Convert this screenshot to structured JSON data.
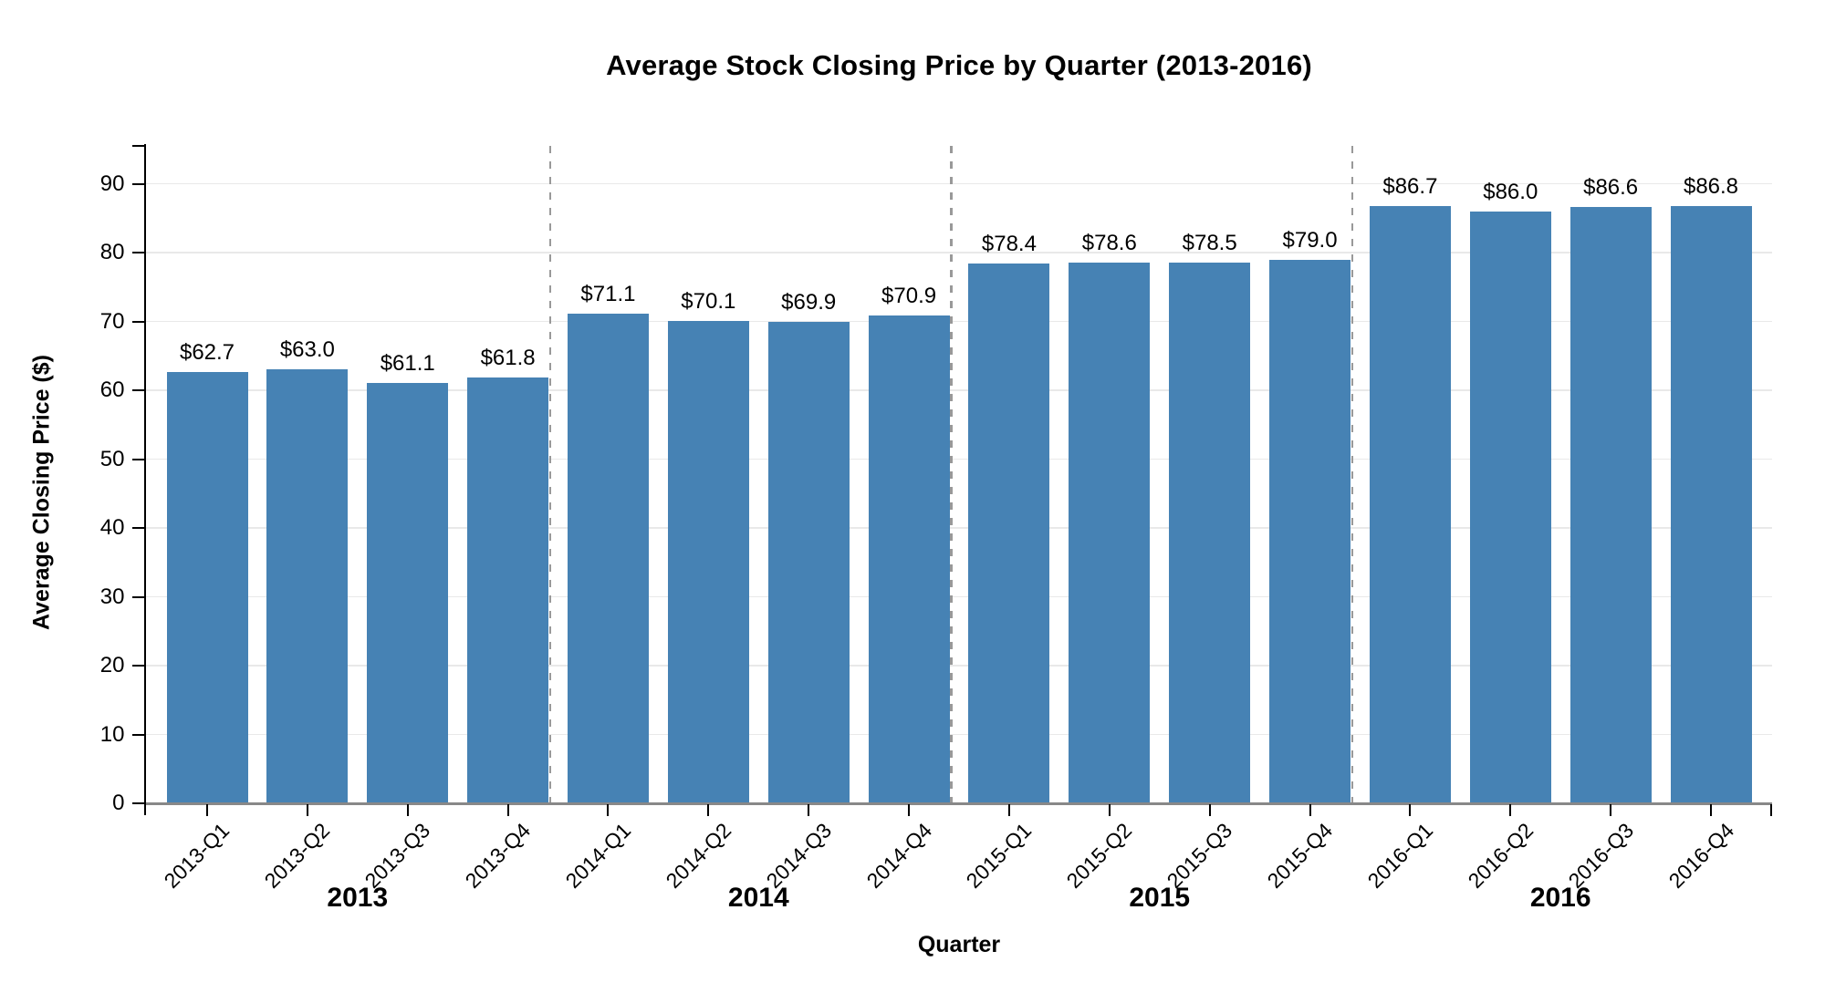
{
  "chart_data": {
    "type": "bar",
    "title": "Average Stock Closing Price by Quarter (2013-2016)",
    "xlabel": "Quarter",
    "ylabel": "Average Closing Price ($)",
    "categories": [
      "2013-Q1",
      "2013-Q2",
      "2013-Q3",
      "2013-Q4",
      "2014-Q1",
      "2014-Q2",
      "2014-Q3",
      "2014-Q4",
      "2015-Q1",
      "2015-Q2",
      "2015-Q3",
      "2015-Q4",
      "2016-Q1",
      "2016-Q2",
      "2016-Q3",
      "2016-Q4"
    ],
    "values": [
      62.7,
      63.0,
      61.1,
      61.8,
      71.1,
      70.1,
      69.9,
      70.9,
      78.4,
      78.6,
      78.5,
      79.0,
      86.7,
      86.0,
      86.6,
      86.8
    ],
    "value_labels": [
      "$62.7",
      "$63.0",
      "$61.1",
      "$61.8",
      "$71.1",
      "$70.1",
      "$69.9",
      "$70.9",
      "$78.4",
      "$78.6",
      "$78.5",
      "$79.0",
      "$86.7",
      "$86.0",
      "$86.6",
      "$86.8"
    ],
    "yticks": [
      0,
      10,
      20,
      30,
      40,
      50,
      60,
      70,
      80,
      90
    ],
    "ylim": [
      0,
      95.5
    ],
    "grid": true,
    "legend": "none",
    "year_groups": [
      {
        "label": "2013",
        "from": 0,
        "to": 3
      },
      {
        "label": "2014",
        "from": 4,
        "to": 7
      },
      {
        "label": "2015",
        "from": 8,
        "to": 11
      },
      {
        "label": "2016",
        "from": 12,
        "to": 15
      }
    ],
    "colors": {
      "bar": "#4682b4",
      "grid": "#e9e9e9",
      "axis_domain": "#888888",
      "spine_and_ticks": "#000000",
      "year_separator": "#999999",
      "text": "#000000",
      "background": "#ffffff"
    }
  }
}
